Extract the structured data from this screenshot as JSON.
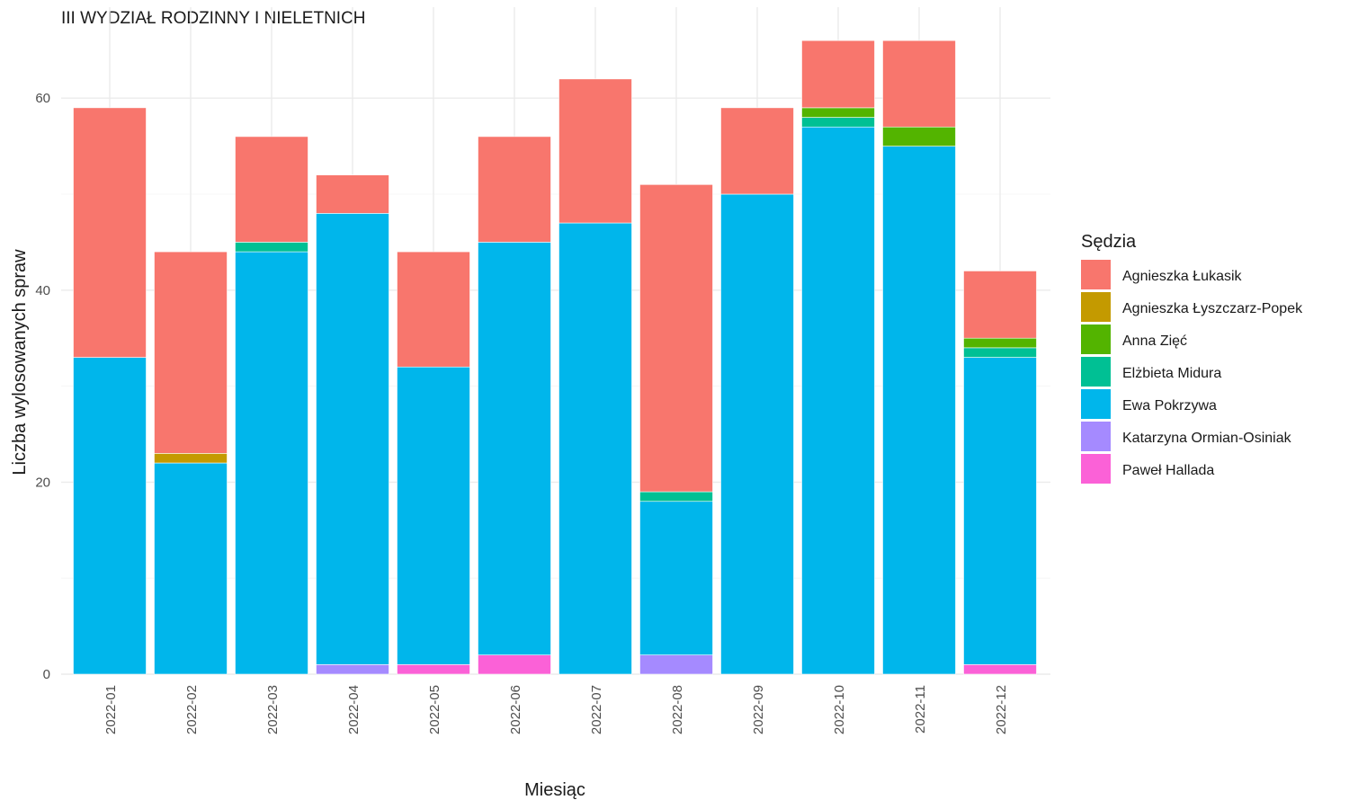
{
  "chart_data": {
    "type": "bar",
    "stacked": true,
    "title": "III WYDZIAŁ RODZINNY I NIELETNICH",
    "xlabel": "Miesiąc",
    "ylabel": "Liczba wylosowanych spraw",
    "ylim": [
      0,
      66
    ],
    "yticks": [
      0,
      20,
      40,
      60
    ],
    "grid": true,
    "legend_title": "Sędzia",
    "legend_position": "right",
    "categories": [
      "2022-01",
      "2022-02",
      "2022-03",
      "2022-04",
      "2022-05",
      "2022-06",
      "2022-07",
      "2022-08",
      "2022-09",
      "2022-10",
      "2022-11",
      "2022-12"
    ],
    "series": [
      {
        "name": "Agnieszka Łukasik",
        "color": "#F8766D",
        "values": [
          26,
          21,
          11,
          4,
          12,
          11,
          15,
          32,
          9,
          7,
          9,
          7
        ]
      },
      {
        "name": "Agnieszka Łyszczarz-Popek",
        "color": "#C49A00",
        "values": [
          0,
          1,
          0,
          0,
          0,
          0,
          0,
          0,
          0,
          0,
          0,
          0
        ]
      },
      {
        "name": "Anna Zięć",
        "color": "#53B400",
        "values": [
          0,
          0,
          0,
          0,
          0,
          0,
          0,
          0,
          0,
          1,
          2,
          1
        ]
      },
      {
        "name": "Elżbieta Midura",
        "color": "#00C094",
        "values": [
          0,
          0,
          1,
          0,
          0,
          0,
          0,
          1,
          0,
          1,
          0,
          1
        ]
      },
      {
        "name": "Ewa Pokrzywa",
        "color": "#00B6EB",
        "values": [
          33,
          22,
          44,
          47,
          31,
          43,
          47,
          16,
          50,
          57,
          55,
          32
        ]
      },
      {
        "name": "Katarzyna Ormian-Osiniak",
        "color": "#A58AFF",
        "values": [
          0,
          0,
          0,
          1,
          0,
          0,
          0,
          2,
          0,
          0,
          0,
          0
        ]
      },
      {
        "name": "Paweł Hallada",
        "color": "#FB61D7",
        "values": [
          0,
          0,
          0,
          0,
          1,
          2,
          0,
          0,
          0,
          0,
          0,
          1
        ]
      }
    ]
  }
}
